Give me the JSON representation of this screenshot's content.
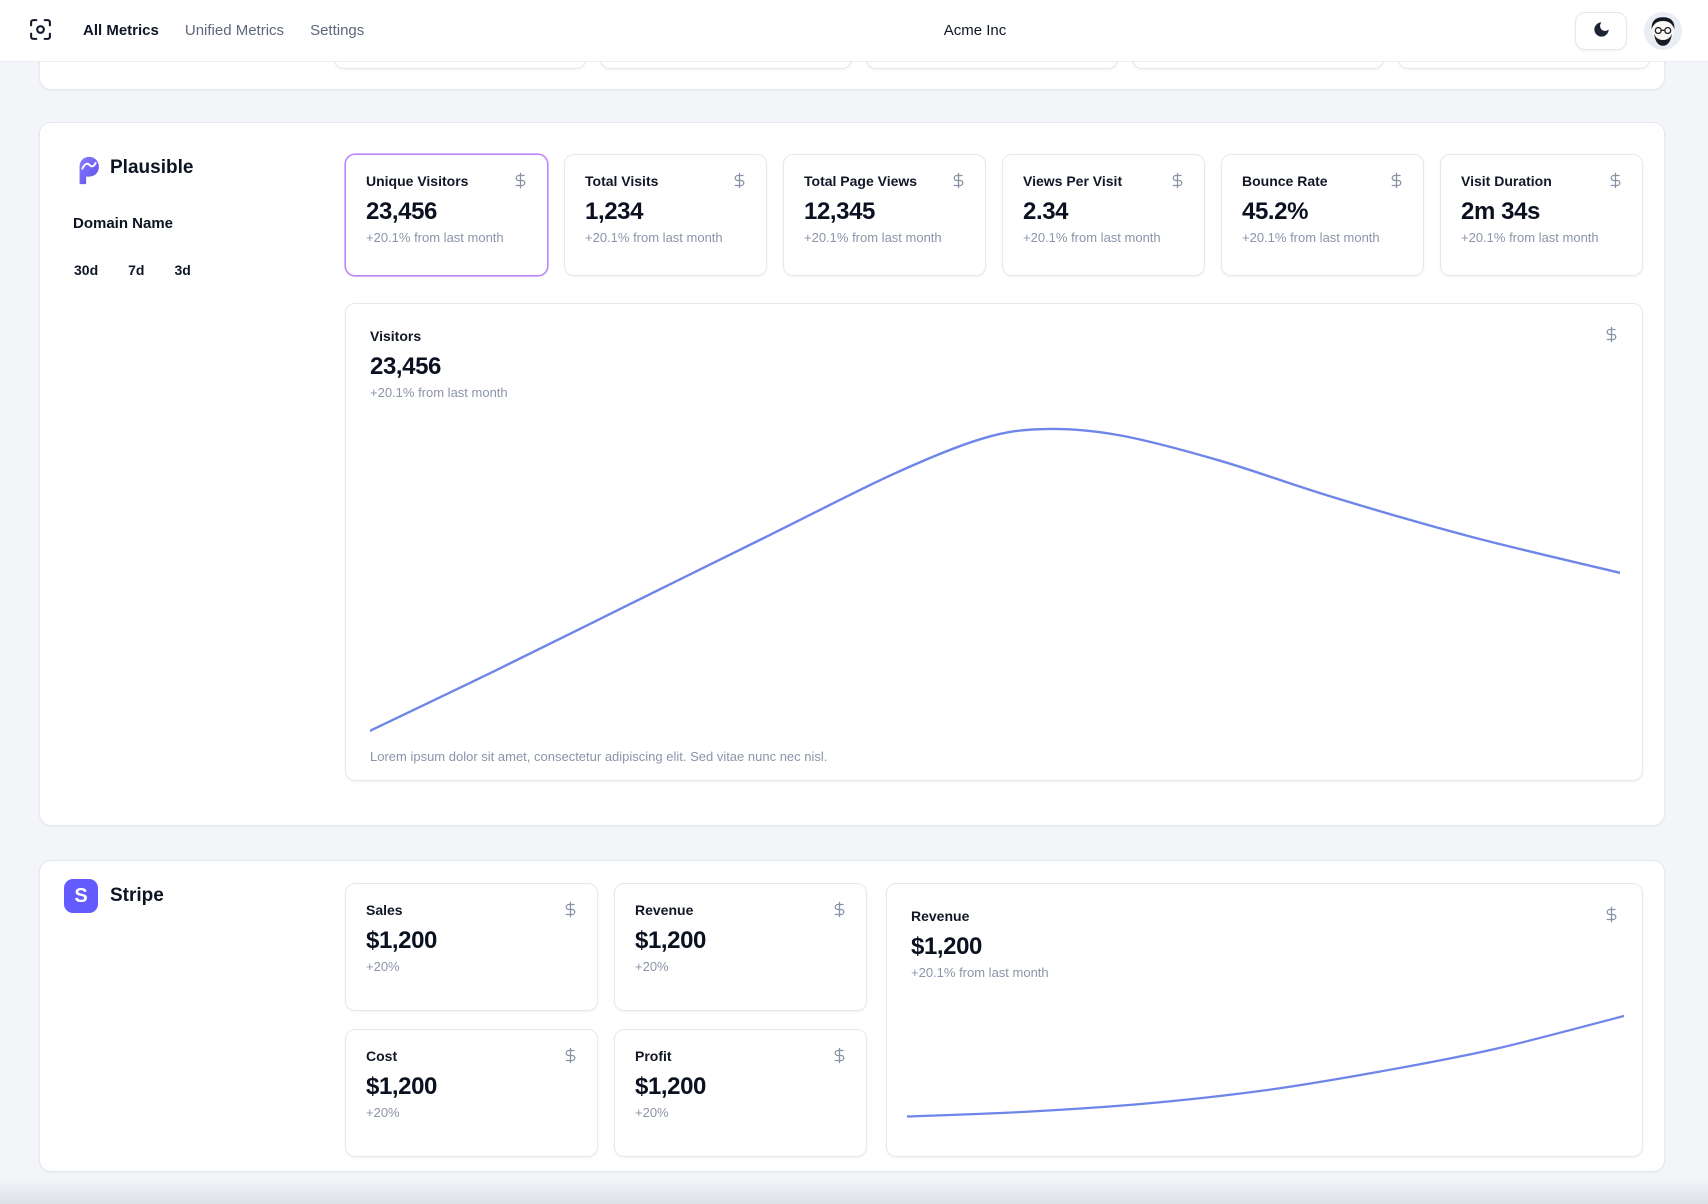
{
  "nav": {
    "brand_icon": "scan-focus-icon",
    "items": [
      {
        "label": "All Metrics",
        "active": true
      },
      {
        "label": "Unified Metrics",
        "active": false
      },
      {
        "label": "Settings",
        "active": false
      }
    ],
    "org_name": "Acme Inc",
    "theme_toggle_icon": "moon-icon",
    "avatar_icon": "user-avatar"
  },
  "clipped_cards_row": {
    "visible_card_bottoms": 5
  },
  "plausible": {
    "name": "Plausible",
    "domain_label": "Domain Name",
    "ranges": [
      {
        "label": "30d"
      },
      {
        "label": "7d"
      },
      {
        "label": "3d"
      }
    ],
    "metrics": [
      {
        "label": "Unique Visitors",
        "value": "23,456",
        "delta": "+20.1% from last month",
        "selected": true
      },
      {
        "label": "Total Visits",
        "value": "1,234",
        "delta": "+20.1% from last month",
        "selected": false
      },
      {
        "label": "Total Page Views",
        "value": "12,345",
        "delta": "+20.1% from last month",
        "selected": false
      },
      {
        "label": "Views Per Visit",
        "value": "2.34",
        "delta": "+20.1% from last month",
        "selected": false
      },
      {
        "label": "Bounce Rate",
        "value": "45.2%",
        "delta": "+20.1% from last month",
        "selected": false
      },
      {
        "label": "Visit Duration",
        "value": "2m 34s",
        "delta": "+20.1% from last month",
        "selected": false
      }
    ],
    "visitors_chart": {
      "label": "Visitors",
      "value": "23,456",
      "delta": "+20.1% from last month",
      "footnote": "Lorem ipsum dolor sit amet, consectetur adipiscing elit. Sed vitae nunc nec nisl."
    }
  },
  "stripe": {
    "name": "Stripe",
    "logo_letter": "S",
    "cards": [
      {
        "label": "Sales",
        "value": "$1,200",
        "delta": "+20%"
      },
      {
        "label": "Revenue",
        "value": "$1,200",
        "delta": "+20%"
      },
      {
        "label": "Cost",
        "value": "$1,200",
        "delta": "+20%"
      },
      {
        "label": "Profit",
        "value": "$1,200",
        "delta": "+20%"
      }
    ],
    "revenue_chart": {
      "label": "Revenue",
      "value": "$1,200",
      "delta": "+20.1% from last month"
    }
  },
  "chart_data": [
    {
      "id": "visitors-trend",
      "type": "line",
      "title": "Visitors",
      "axes": "none (unlabeled sparkline)",
      "series": [
        {
          "name": "Visitors",
          "points_norm": [
            [
              0,
              0.99
            ],
            [
              0.1,
              0.8
            ],
            [
              0.21,
              0.585
            ],
            [
              0.32,
              0.37
            ],
            [
              0.42,
              0.175
            ],
            [
              0.49,
              0.065
            ],
            [
              0.54,
              0.035
            ],
            [
              0.6,
              0.055
            ],
            [
              0.68,
              0.135
            ],
            [
              0.77,
              0.25
            ],
            [
              0.88,
              0.375
            ],
            [
              1,
              0.49
            ]
          ]
        }
      ]
    },
    {
      "id": "stripe-revenue-trend",
      "type": "line",
      "title": "Revenue",
      "axes": "none (unlabeled sparkline)",
      "series": [
        {
          "name": "Revenue",
          "points_norm": [
            [
              0,
              0.83
            ],
            [
              0.16,
              0.8
            ],
            [
              0.33,
              0.745
            ],
            [
              0.5,
              0.655
            ],
            [
              0.66,
              0.53
            ],
            [
              0.82,
              0.38
            ],
            [
              1,
              0.16
            ]
          ]
        }
      ]
    }
  ],
  "colors": {
    "accent_selected_border": "#c084fc",
    "chart_line": "#6e86e8",
    "stripe_brand": "#635bff",
    "plausible_brand": "#6c5cf0",
    "muted_text": "#8b94a8"
  }
}
